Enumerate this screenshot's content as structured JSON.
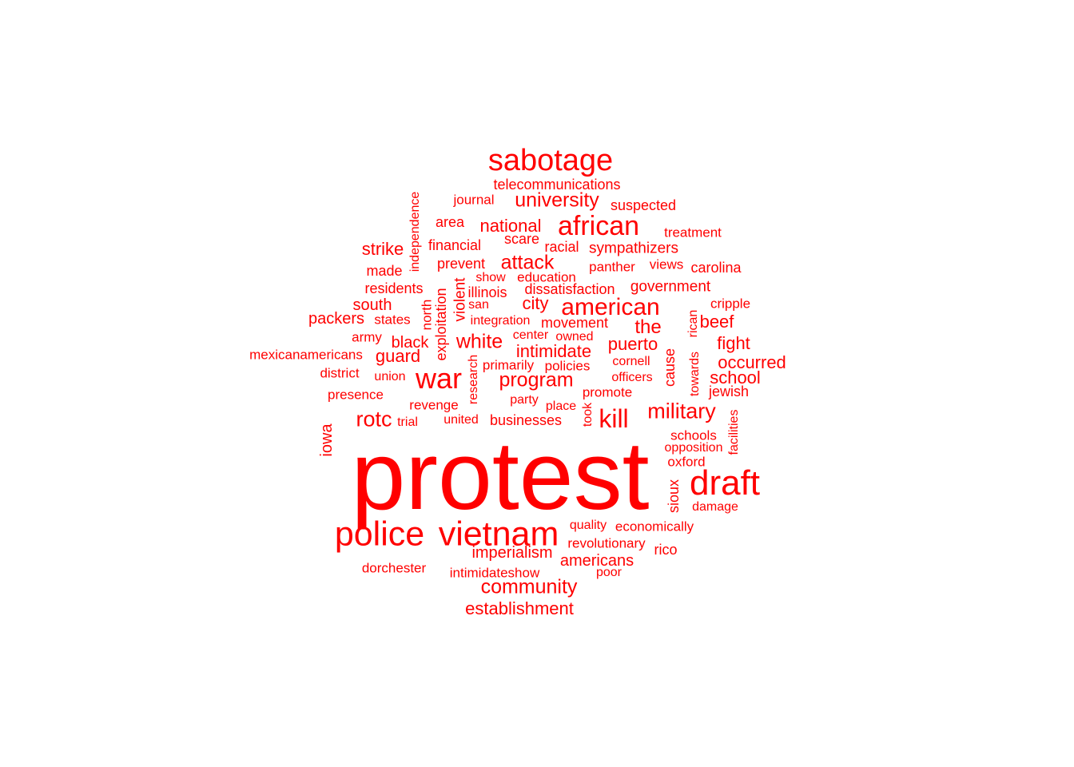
{
  "cloud": {
    "color": "#ff0000",
    "words": [
      "protest",
      "sabotage",
      "african",
      "war",
      "police",
      "vietnam",
      "draft",
      "american",
      "military",
      "kill",
      "program",
      "community",
      "university",
      "establishment",
      "rotc",
      "white",
      "attack",
      "intimidate",
      "national",
      "strike",
      "guard",
      "the",
      "city",
      "puerto",
      "occurred",
      "school",
      "americans",
      "imperialism",
      "beef",
      "fight",
      "government",
      "black",
      "packers",
      "south",
      "area",
      "telecommunications",
      "suspected",
      "sympathizers",
      "racial",
      "scare",
      "financial",
      "prevent",
      "made",
      "residents",
      "journal",
      "treatment",
      "carolina",
      "panther",
      "views",
      "education",
      "dissatisfaction",
      "illinois",
      "show",
      "san",
      "cripple",
      "integration",
      "movement",
      "states",
      "army",
      "center",
      "owned",
      "mexicanamericans",
      "district",
      "union",
      "presence",
      "revenge",
      "party",
      "place",
      "promote",
      "officers",
      "cornell",
      "policies",
      "primarily",
      "united",
      "businesses",
      "trial",
      "jewish",
      "schools",
      "opposition",
      "oxford",
      "damage",
      "quality",
      "economically",
      "revolutionary",
      "rico",
      "dorchester",
      "intimidateshow",
      "poor",
      "independence",
      "exploitation",
      "north",
      "violent",
      "research",
      "iowa",
      "took",
      "cause",
      "towards",
      "rican",
      "facilities",
      "sioux"
    ]
  }
}
